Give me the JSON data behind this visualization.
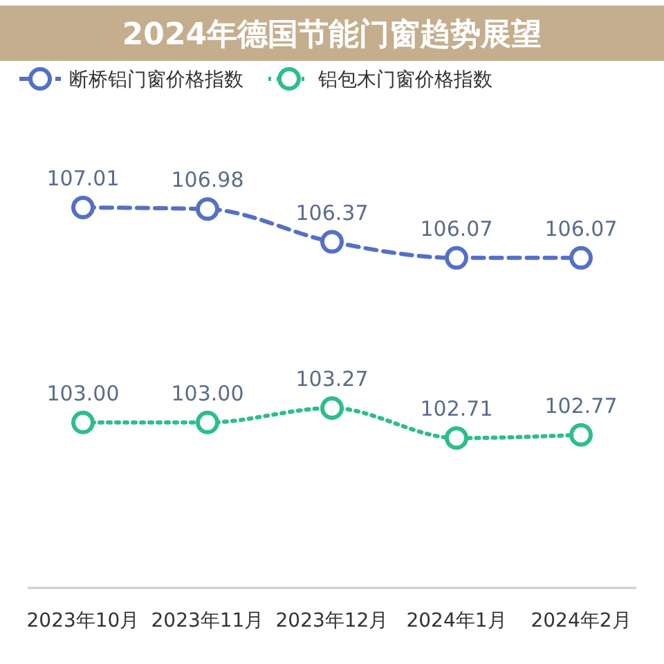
{
  "chart_data": {
    "type": "line",
    "title": "2024年德国节能门窗趋势展望",
    "categories": [
      "2023年10月",
      "2023年11月",
      "2023年12月",
      "2024年1月",
      "2024年2月"
    ],
    "series": [
      {
        "name": "断桥铝门窗价格指数",
        "color": "#5470c6",
        "line_style": "dashed",
        "values": [
          107.01,
          106.98,
          106.37,
          106.07,
          106.07
        ],
        "value_labels": [
          "107.01",
          "106.98",
          "106.37",
          "106.07",
          "106.07"
        ]
      },
      {
        "name": "铝包木门窗价格指数",
        "color": "#2ebd8c",
        "line_style": "dotted",
        "values": [
          103.0,
          103.0,
          103.27,
          102.71,
          102.77
        ],
        "value_labels": [
          "103.00",
          "103.00",
          "103.27",
          "102.71",
          "102.77"
        ]
      }
    ],
    "tick_labels": "x",
    "marker": "circle",
    "legend": "top left",
    "grid": false
  }
}
